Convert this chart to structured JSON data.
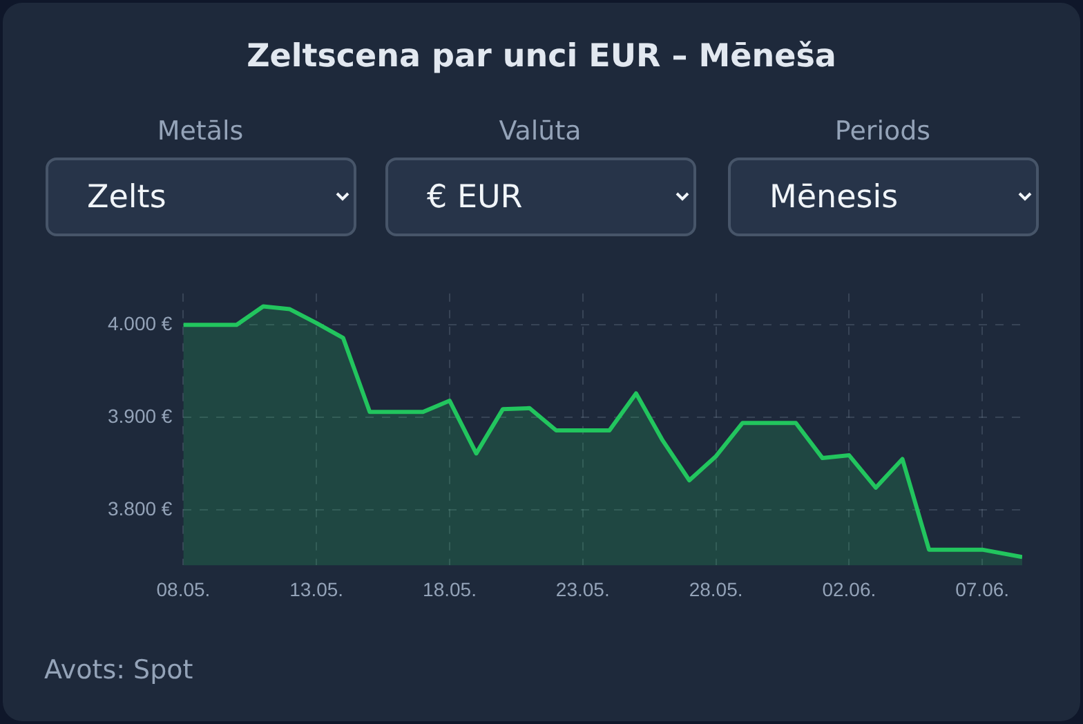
{
  "chart_data": {
    "type": "area",
    "title": "Zeltscena par unci EUR – Mēneša",
    "annotations": [
      "Metāls",
      "Zelts",
      "Valūta",
      "€ EUR",
      "Periods",
      "Mēnesis",
      "Avots: Spot"
    ],
    "series": [
      {
        "color": "#22c55e",
        "x": [
          "--05-08",
          "--05-09",
          "--05-10",
          "--05-11",
          "--05-12",
          "--05-13",
          "--05-14",
          "--05-15",
          "--05-16",
          "--05-17",
          "--05-18",
          "--05-19",
          "--05-20",
          "--05-21",
          "--05-22",
          "--05-23",
          "--05-24",
          "--05-25",
          "--05-26",
          "--05-27",
          "--05-28",
          "--05-29",
          "--05-30",
          "--05-31",
          "--06-01",
          "--06-02",
          "--06-03",
          "--06-04",
          "--06-05",
          "--06-06",
          "--06-07",
          "--06-08T12:00"
        ],
        "values": [
          4000,
          4000,
          4000,
          4020,
          4017,
          4002,
          3986,
          3906,
          3906,
          3906,
          3918,
          3861,
          3909,
          3910,
          3886,
          3886,
          3886,
          3926,
          3875,
          3832,
          3858,
          3894,
          3894,
          3894,
          3856,
          3859,
          3824,
          3855,
          3757,
          3757,
          3757,
          3749
        ]
      }
    ],
    "xlim": [
      "--05-08",
      "--06-08T12:00"
    ],
    "xticks": [
      {
        "value": "--05-08",
        "label": "08.05."
      },
      {
        "value": "--05-13",
        "label": "13.05."
      },
      {
        "value": "--05-18",
        "label": "18.05."
      },
      {
        "value": "--05-23",
        "label": "23.05."
      },
      {
        "value": "--05-28",
        "label": "28.05."
      },
      {
        "value": "--06-02",
        "label": "02.06."
      },
      {
        "value": "--06-07",
        "label": "07.06."
      }
    ],
    "ylim": [
      3740,
      4034
    ],
    "yticks": [
      {
        "value": 3800,
        "label": "3.800 €"
      },
      {
        "value": 3900,
        "label": "3.900 €"
      },
      {
        "value": 4000,
        "label": "4.000 €"
      }
    ],
    "grid": true,
    "legend": false,
    "marker": "none",
    "line_style": "solid"
  }
}
